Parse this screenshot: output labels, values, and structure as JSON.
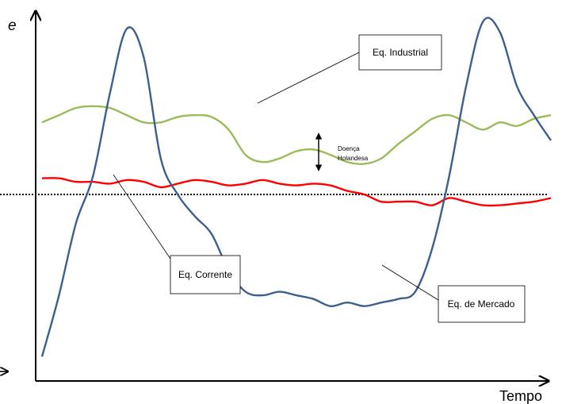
{
  "chart_data": {
    "type": "line",
    "title": "",
    "xlabel": "Tempo",
    "ylabel": "e",
    "grid": false,
    "legend": "none",
    "x": [
      0,
      1,
      2,
      3,
      4,
      5,
      6,
      7,
      8,
      9,
      10,
      11,
      12,
      13,
      14,
      15,
      16,
      17,
      18,
      19,
      20,
      21,
      22,
      23,
      24,
      25,
      26,
      27,
      28,
      29,
      30
    ],
    "series": [
      {
        "name": "Eq. Industrial",
        "color": "#9BBB59",
        "values": [
          0.7,
          0.72,
          0.74,
          0.745,
          0.74,
          0.72,
          0.7,
          0.7,
          0.715,
          0.72,
          0.715,
          0.68,
          0.61,
          0.59,
          0.6,
          0.62,
          0.625,
          0.61,
          0.59,
          0.585,
          0.6,
          0.64,
          0.675,
          0.71,
          0.72,
          0.7,
          0.68,
          0.7,
          0.69,
          0.71,
          0.72
        ]
      },
      {
        "name": "Eq. Corrente",
        "color": "#FF0000",
        "values": [
          0.545,
          0.545,
          0.535,
          0.535,
          0.53,
          0.54,
          0.535,
          0.52,
          0.53,
          0.54,
          0.535,
          0.525,
          0.53,
          0.54,
          0.53,
          0.525,
          0.53,
          0.525,
          0.51,
          0.5,
          0.48,
          0.48,
          0.48,
          0.47,
          0.49,
          0.48,
          0.47,
          0.47,
          0.475,
          0.48,
          0.49
        ]
      },
      {
        "name": "Eq. de Mercado",
        "color": "#3D5F8E",
        "values": [
          0.05,
          0.22,
          0.42,
          0.55,
          0.78,
          0.96,
          0.88,
          0.6,
          0.5,
          0.44,
          0.39,
          0.29,
          0.23,
          0.22,
          0.23,
          0.22,
          0.21,
          0.19,
          0.2,
          0.19,
          0.2,
          0.21,
          0.23,
          0.35,
          0.55,
          0.8,
          0.98,
          0.95,
          0.8,
          0.72,
          0.65
        ]
      }
    ],
    "reference_line": {
      "label": "",
      "value": 0.5,
      "style": "dotted",
      "color": "#000000"
    },
    "annotations": {
      "industrial": {
        "text": "Eq. Industrial"
      },
      "corrente": {
        "text": "Eq. Corrente"
      },
      "mercado": {
        "text": "Eq. de Mercado"
      },
      "doenca": {
        "line1": "Doença",
        "line2": "Holandesa"
      }
    }
  }
}
